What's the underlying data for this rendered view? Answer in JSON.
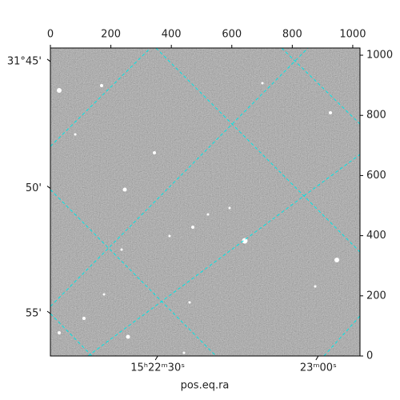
{
  "chart_data": {
    "type": "image",
    "xlabel": "pos.eq.ra",
    "xlim": [
      0,
      1024
    ],
    "ylim": [
      0,
      1024
    ],
    "xticks": [
      0,
      200,
      400,
      600,
      800,
      1000
    ],
    "yticks": [
      0,
      200,
      400,
      600,
      800,
      1000
    ],
    "world_xticks": [
      {
        "value": 355,
        "label": "15ʰ22ᵐ30ˢ"
      },
      {
        "value": 886,
        "label": "23ᵐ00ˢ"
      }
    ],
    "world_yticks": [
      {
        "value": 979,
        "label": "31°45'"
      },
      {
        "value": 557,
        "label": "50'"
      },
      {
        "value": 141,
        "label": "55'"
      }
    ],
    "grid": true,
    "grid_color": "#00e5e5"
  }
}
